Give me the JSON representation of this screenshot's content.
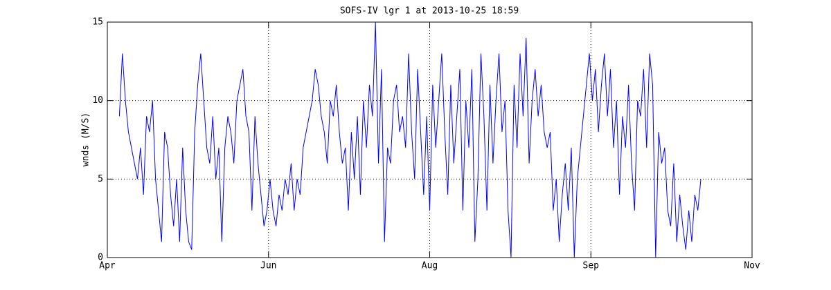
{
  "chart_data": {
    "type": "line",
    "title": "SOFS-IV lgr 1 at 2013-10-25 18:59",
    "y_label": "wnds (M/S)",
    "x": [
      4,
      5,
      6,
      7,
      8,
      9,
      10,
      11,
      12,
      13,
      14,
      15,
      16,
      17,
      18,
      19,
      20,
      21,
      22,
      23,
      24,
      25,
      26,
      27,
      28,
      29,
      30,
      31,
      32,
      33,
      34,
      35,
      36,
      37,
      38,
      39,
      40,
      41,
      42,
      43,
      44,
      45,
      46,
      47,
      48,
      49,
      50,
      51,
      52,
      53,
      54,
      55,
      56,
      57,
      58,
      59,
      60,
      61,
      62,
      63,
      64,
      65,
      66,
      67,
      68,
      69,
      70,
      71,
      72,
      73,
      74,
      75,
      76,
      77,
      78,
      79,
      80,
      81,
      82,
      83,
      84,
      85,
      86,
      87,
      88,
      89,
      90,
      91,
      92,
      93,
      94,
      95,
      96,
      97,
      98,
      99,
      100,
      101,
      102,
      103,
      104,
      105,
      106,
      107,
      108,
      109,
      110,
      111,
      112,
      113,
      114,
      115,
      116,
      117,
      118,
      119,
      120,
      121,
      122,
      123,
      124,
      125,
      126,
      127,
      128,
      129,
      130,
      131,
      132,
      133,
      134,
      135,
      136,
      137,
      138,
      139,
      140,
      141,
      142,
      143,
      144,
      145,
      146,
      147,
      148,
      149,
      150,
      151,
      152,
      153,
      154,
      155,
      156,
      157,
      158,
      159,
      160,
      161,
      162,
      163,
      164,
      165,
      166,
      167,
      168,
      169,
      170,
      171,
      172,
      173,
      174,
      175,
      176,
      177,
      178,
      179,
      180,
      181,
      182,
      183,
      184,
      185,
      186,
      187,
      188,
      189,
      190,
      191,
      192,
      193,
      194,
      195,
      196,
      197
    ],
    "series": [
      {
        "name": "wnds",
        "color": "#0000ff",
        "values": [
          9,
          13,
          10,
          8,
          7,
          6,
          5,
          7,
          4,
          9,
          8,
          10,
          5,
          3,
          1,
          8,
          7,
          4,
          2,
          5,
          1,
          7,
          3,
          1,
          0.5,
          8,
          11,
          13,
          10,
          7,
          6,
          9,
          5,
          7,
          1,
          7,
          9,
          8,
          6,
          10,
          11,
          12,
          9,
          8,
          3,
          9,
          6,
          4,
          2,
          3,
          5,
          3,
          2,
          4,
          3,
          5,
          4,
          6,
          3,
          5,
          4,
          7,
          8,
          9,
          10,
          12,
          11,
          9,
          8,
          6,
          10,
          9,
          11,
          8,
          6,
          7,
          3,
          8,
          5,
          9,
          4,
          10,
          7,
          11,
          9,
          15,
          6,
          12,
          1,
          7,
          6,
          10,
          11,
          8,
          9,
          7,
          13,
          8,
          5,
          12,
          8,
          4,
          9,
          3,
          11,
          7,
          10,
          13,
          8,
          4,
          11,
          6,
          9,
          12,
          3,
          10,
          7,
          12,
          1,
          5,
          13,
          9,
          3,
          11,
          6,
          10,
          13,
          8,
          10,
          3,
          0,
          11,
          7,
          13,
          9,
          14,
          6,
          10,
          12,
          9,
          11,
          8,
          7,
          8,
          3,
          5,
          1,
          4,
          6,
          3,
          7,
          0,
          5,
          7,
          9,
          11,
          13,
          10,
          12,
          8,
          11,
          13,
          9,
          12,
          7,
          10,
          4,
          9,
          7,
          11,
          6,
          3,
          10,
          9,
          12,
          7,
          13,
          11,
          0,
          8,
          6,
          7,
          3,
          2,
          6,
          1,
          4,
          2,
          0.5,
          3,
          1,
          4,
          3,
          5
        ]
      }
    ],
    "xlim": [
      0,
      214
    ],
    "xticks": [
      {
        "value": 0,
        "label": "Apr"
      },
      {
        "value": 53.5,
        "label": "Jun"
      },
      {
        "value": 107,
        "label": "Aug"
      },
      {
        "value": 160.5,
        "label": "Sep"
      },
      {
        "value": 214,
        "label": "Nov"
      }
    ],
    "ylim": [
      0,
      15
    ],
    "yticks": [
      0,
      5,
      10,
      15
    ],
    "grid": true
  }
}
